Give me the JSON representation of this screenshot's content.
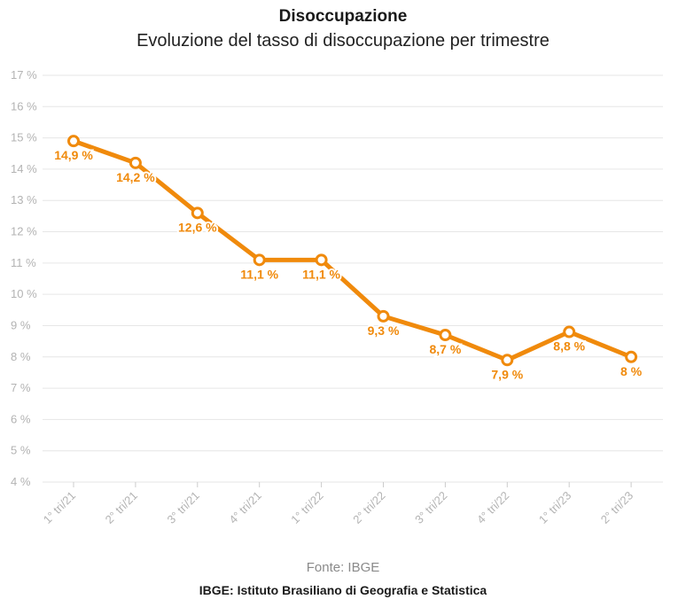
{
  "header": {
    "title": "Disoccupazione",
    "subtitle": "Evoluzione del tasso di disoccupazione per trimestre"
  },
  "footer": {
    "source": "Fonte: IBGE",
    "note": "IBGE: Istituto Brasiliano di Geografia e Statistica"
  },
  "chart_data": {
    "type": "line",
    "title": "Disoccupazione",
    "subtitle": "Evoluzione del tasso di disoccupazione per trimestre",
    "categories": [
      "1° tri/21",
      "2° tri/21",
      "3° tri/21",
      "4° tri/21",
      "1° tri/22",
      "2° tri/22",
      "3° tri/22",
      "4° tri/22",
      "1° tri/23",
      "2° tri/23"
    ],
    "values": [
      14.9,
      14.2,
      12.6,
      11.1,
      11.1,
      9.3,
      8.7,
      7.9,
      8.8,
      8.0
    ],
    "data_labels": [
      "14,9 %",
      "14,2 %",
      "12,6 %",
      "11,1 %",
      "11,1 %",
      "9,3 %",
      "8,7 %",
      "7,9 %",
      "8,8 %",
      "8 %"
    ],
    "yticks": [
      4,
      5,
      6,
      7,
      8,
      9,
      10,
      11,
      12,
      13,
      14,
      15,
      16,
      17
    ],
    "ytick_labels": [
      "4 %",
      "5 %",
      "6 %",
      "7 %",
      "8 %",
      "9 %",
      "10 %",
      "11 %",
      "12 %",
      "13 %",
      "14 %",
      "15 %",
      "16 %",
      "17 %"
    ],
    "ylim": [
      4,
      17
    ],
    "grid": true,
    "line_color": "#f08a0c",
    "grid_color": "#e6e6e6"
  }
}
